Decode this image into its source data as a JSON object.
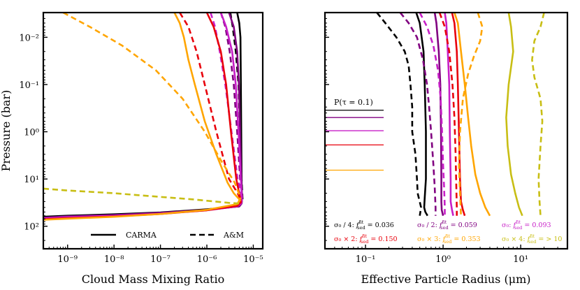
{
  "chart_data": [
    {
      "type": "line",
      "panel": "left",
      "xlabel": "Cloud Mass Mixing Ratio",
      "ylabel": "Pressure (bar)",
      "xscale": "log",
      "yscale": "log",
      "xlim": [
        3e-10,
        1.6e-05
      ],
      "ylim": [
        300,
        0.003
      ],
      "yinverted": true,
      "xticks": [
        {
          "v": 1e-09,
          "label": "10⁻⁹"
        },
        {
          "v": 1e-08,
          "label": "10⁻⁸"
        },
        {
          "v": 1e-07,
          "label": "10⁻⁷"
        },
        {
          "v": 1e-06,
          "label": "10⁻⁶"
        },
        {
          "v": 1e-05,
          "label": "10⁻⁵"
        }
      ],
      "yticks": [
        {
          "v": 0.01,
          "label": "10⁻²"
        },
        {
          "v": 0.1,
          "label": "10⁻¹"
        },
        {
          "v": 1,
          "label": "10⁰"
        },
        {
          "v": 10,
          "label": "10¹"
        },
        {
          "v": 100,
          "label": "10²"
        }
      ],
      "legend": {
        "placement": "lower-center",
        "items": [
          {
            "label": "CARMA",
            "style": "solid"
          },
          {
            "label": "A&M",
            "style": "dashed"
          }
        ]
      },
      "series": [
        {
          "name": "σ0 / 4 CARMA",
          "color": "#000000",
          "style": "solid",
          "x": [
            4.5e-06,
            5e-06,
            5.3e-06,
            5.4e-06,
            5.5e-06,
            5.6e-06,
            5.7e-06,
            5.6e-06,
            5e-06,
            1e-06,
            1e-07,
            1e-08,
            1e-09,
            3e-10
          ],
          "y": [
            0.003,
            0.005,
            0.01,
            0.1,
            1,
            10,
            28,
            33,
            38,
            44,
            51,
            56,
            60,
            63
          ]
        },
        {
          "name": "σ0 / 4 A&M",
          "color": "#000000",
          "style": "dashed",
          "x": [
            3.2e-06,
            3.6e-06,
            4.2e-06,
            4.8e-06,
            5.2e-06,
            5.6e-06,
            5.8e-06,
            5.9e-06,
            5e-06
          ],
          "y": [
            0.003,
            0.006,
            0.02,
            0.1,
            1,
            10,
            20,
            28,
            35
          ]
        },
        {
          "name": "σ0 / 2 CARMA",
          "color": "#800080",
          "style": "solid",
          "x": [
            3e-06,
            3.8e-06,
            4.5e-06,
            4.9e-06,
            5.2e-06,
            5.5e-06,
            5.7e-06,
            5.6e-06,
            5e-06,
            1e-06,
            1e-07,
            1e-08,
            1e-09,
            3e-10
          ],
          "y": [
            0.003,
            0.006,
            0.02,
            0.1,
            1,
            10,
            27,
            33,
            38,
            45,
            52,
            58,
            62,
            66
          ]
        },
        {
          "name": "σ0 / 2 A&M",
          "color": "#800080",
          "style": "dashed",
          "x": [
            2e-06,
            2.5e-06,
            3.1e-06,
            3.8e-06,
            4.5e-06,
            5.2e-06,
            5.7e-06,
            5.9e-06,
            5e-06
          ],
          "y": [
            0.003,
            0.006,
            0.02,
            0.1,
            1,
            10,
            20,
            28,
            35
          ]
        },
        {
          "name": "σ0 CARMA",
          "color": "#c71ec7",
          "style": "solid",
          "x": [
            2e-06,
            2.6e-06,
            3.5e-06,
            4.2e-06,
            4.8e-06,
            5.4e-06,
            5.7e-06,
            5.5e-06,
            4.5e-06,
            1e-06,
            1e-07,
            1e-08,
            1e-09,
            3e-10
          ],
          "y": [
            0.003,
            0.006,
            0.02,
            0.1,
            1,
            10,
            27,
            33,
            38,
            46,
            54,
            60,
            64,
            68
          ]
        },
        {
          "name": "σ0 A&M",
          "color": "#c71ec7",
          "style": "dashed",
          "x": [
            1.2e-06,
            1.5e-06,
            1.9e-06,
            2.5e-06,
            3.4e-06,
            4.6e-06,
            5.5e-06,
            5.8e-06,
            5e-06
          ],
          "y": [
            0.003,
            0.006,
            0.02,
            0.1,
            1,
            10,
            20,
            28,
            35
          ]
        },
        {
          "name": "σ0 × 2 CARMA",
          "color": "#e8000b",
          "style": "solid",
          "x": [
            1e-06,
            1.4e-06,
            2e-06,
            2.6e-06,
            3.3e-06,
            4.3e-06,
            5.2e-06,
            5.4e-06,
            4.5e-06,
            1e-06,
            1e-07,
            1e-08,
            1e-09,
            3e-10
          ],
          "y": [
            0.003,
            0.006,
            0.02,
            0.1,
            1,
            10,
            25,
            31,
            37,
            46,
            55,
            62,
            67,
            71
          ]
        },
        {
          "name": "σ0 × 2 A&M",
          "color": "#e8000b",
          "style": "dashed",
          "x": [
            2.6e-07,
            4e-07,
            6e-07,
            9e-07,
            1.6e-06,
            3e-06,
            4.6e-06,
            5.4e-06,
            4.8e-06
          ],
          "y": [
            0.003,
            0.006,
            0.02,
            0.1,
            1,
            10,
            20,
            28,
            35
          ]
        },
        {
          "name": "σ0 × 3 CARMA",
          "color": "#ffa500",
          "style": "solid",
          "x": [
            2e-07,
            2.6e-07,
            3.2e-07,
            4e-07,
            5.5e-07,
            9e-07,
            1.6e-06,
            2.8e-06,
            3.8e-06,
            5.2e-06,
            4.5e-06,
            1e-06,
            1e-07,
            1e-08,
            1e-09,
            3e-10
          ],
          "y": [
            0.003,
            0.005,
            0.01,
            0.03,
            0.1,
            0.6,
            3,
            12,
            20,
            28,
            34,
            45,
            55,
            63,
            69,
            73
          ]
        },
        {
          "name": "σ0 × 3 A&M",
          "color": "#ffa500",
          "style": "dashed",
          "x": [
            8e-10,
            3e-09,
            1.5e-08,
            8e-08,
            3e-07,
            9e-07,
            2e-06,
            4e-06,
            5.3e-06,
            4.5e-06
          ],
          "y": [
            0.003,
            0.006,
            0.015,
            0.05,
            0.2,
            1,
            4,
            12,
            25,
            35
          ]
        },
        {
          "name": "σ0 × 4 A&M",
          "color": "#c8be14",
          "style": "dashed",
          "x": [
            3e-10,
            1e-09,
            1e-08,
            1e-07,
            5e-07,
            1.5e-06,
            3e-06,
            5e-06,
            4.5e-06
          ],
          "y": [
            16,
            17.5,
            20,
            24,
            27,
            30,
            32,
            33,
            36
          ]
        }
      ]
    },
    {
      "type": "line",
      "panel": "right",
      "xlabel": "Effective Particle Radius (μm)",
      "xscale": "log",
      "yscale": "log",
      "xlim": [
        0.03,
        40
      ],
      "ylim": [
        300,
        0.003
      ],
      "yinverted": true,
      "xticks": [
        {
          "v": 0.1,
          "label": "10⁻¹"
        },
        {
          "v": 1,
          "label": "10⁰"
        },
        {
          "v": 10,
          "label": "10¹"
        }
      ],
      "annotation": {
        "label": "P(τ = 0.1)",
        "markers": [
          {
            "p": 0.35,
            "color": "#000000"
          },
          {
            "p": 0.5,
            "color": "#800080"
          },
          {
            "p": 0.95,
            "color": "#c71ec7"
          },
          {
            "p": 1.9,
            "color": "#e8000b"
          },
          {
            "p": 6.5,
            "color": "#ffa500"
          }
        ]
      },
      "legend": {
        "placement": "bottom",
        "items": [
          {
            "prefix": "σ₀ / 4:",
            "value": "0.036",
            "color": "#000000"
          },
          {
            "prefix": "σ₀ / 2:",
            "value": "0.059",
            "color": "#800080"
          },
          {
            "prefix": "σ₀:",
            "value": "0.093",
            "color": "#c71ec7"
          },
          {
            "prefix": "σ₀ × 2:",
            "value": "0.150",
            "color": "#e8000b"
          },
          {
            "prefix": "σ₀ × 3:",
            "value": "0.353",
            "color": "#ffa500"
          },
          {
            "prefix": "σ₀ × 4:",
            "value": "> 10",
            "color": "#c8be14"
          }
        ],
        "f_symbol": "f",
        "f_sup": "fit",
        "f_sub": "sed",
        "eq": "="
      },
      "series": [
        {
          "name": "σ0 / 4 CARMA",
          "color": "#000000",
          "style": "solid",
          "x": [
            0.45,
            0.5,
            0.56,
            0.58,
            0.6,
            0.6,
            0.58,
            0.57,
            0.59,
            0.63
          ],
          "y": [
            0.003,
            0.005,
            0.02,
            0.1,
            1,
            10,
            25,
            40,
            50,
            60
          ]
        },
        {
          "name": "σ0 / 4 A&M",
          "color": "#000000",
          "style": "dashed",
          "x": [
            0.14,
            0.18,
            0.25,
            0.32,
            0.36,
            0.38,
            0.4,
            0.4,
            0.44,
            0.46,
            0.47,
            0.52,
            0.5
          ],
          "y": [
            0.003,
            0.005,
            0.01,
            0.02,
            0.04,
            0.1,
            0.3,
            1,
            3,
            10,
            20,
            40,
            60
          ]
        },
        {
          "name": "σ0 / 2 CARMA",
          "color": "#800080",
          "style": "solid",
          "x": [
            0.78,
            0.82,
            0.88,
            0.92,
            0.94,
            0.95,
            0.95,
            0.96,
            1.0
          ],
          "y": [
            0.003,
            0.005,
            0.02,
            0.1,
            1,
            10,
            30,
            45,
            60
          ]
        },
        {
          "name": "σ0 / 2 A&M",
          "color": "#800080",
          "style": "dashed",
          "x": [
            0.28,
            0.36,
            0.46,
            0.55,
            0.62,
            0.66,
            0.7,
            0.75,
            0.78,
            0.8,
            0.8
          ],
          "y": [
            0.003,
            0.005,
            0.01,
            0.03,
            0.1,
            0.3,
            1,
            5,
            15,
            40,
            60
          ]
        },
        {
          "name": "σ0 CARMA",
          "color": "#c71ec7",
          "style": "solid",
          "x": [
            1.05,
            1.1,
            1.15,
            1.2,
            1.22,
            1.25,
            1.25,
            1.3,
            1.35
          ],
          "y": [
            0.003,
            0.005,
            0.02,
            0.1,
            1,
            10,
            30,
            45,
            60
          ]
        },
        {
          "name": "σ0 A&M",
          "color": "#c71ec7",
          "style": "dashed",
          "x": [
            0.5,
            0.62,
            0.75,
            0.86,
            0.93,
            0.97,
            1.0,
            1.03,
            1.05,
            1.05
          ],
          "y": [
            0.003,
            0.006,
            0.015,
            0.05,
            0.2,
            1,
            5,
            15,
            40,
            60
          ]
        },
        {
          "name": "σ0 × 2 CARMA",
          "color": "#e8000b",
          "style": "solid",
          "x": [
            1.3,
            1.4,
            1.5,
            1.55,
            1.6,
            1.65,
            1.7,
            1.8,
            1.9
          ],
          "y": [
            0.003,
            0.005,
            0.02,
            0.1,
            1,
            10,
            30,
            45,
            60
          ]
        },
        {
          "name": "σ0 × 2 A&M",
          "color": "#e8000b",
          "style": "dashed",
          "x": [
            0.9,
            1.05,
            1.2,
            1.32,
            1.4,
            1.45,
            1.48,
            1.5,
            1.5
          ],
          "y": [
            0.003,
            0.006,
            0.02,
            0.1,
            0.5,
            3,
            15,
            40,
            60
          ]
        },
        {
          "name": "σ0 × 3 CARMA",
          "color": "#ffa500",
          "style": "solid",
          "x": [
            1.4,
            1.55,
            1.7,
            1.9,
            2.1,
            2.3,
            2.6,
            3.0,
            3.5,
            4.0
          ],
          "y": [
            0.003,
            0.005,
            0.02,
            0.1,
            0.5,
            2,
            8,
            20,
            40,
            60
          ]
        },
        {
          "name": "σ0 × 3 A&M",
          "color": "#ffa500",
          "style": "dashed",
          "x": [
            2.8,
            3.2,
            3.0,
            2.5,
            2.1,
            1.8,
            1.65,
            1.6,
            1.65,
            1.7
          ],
          "y": [
            0.003,
            0.006,
            0.012,
            0.025,
            0.06,
            0.2,
            1,
            5,
            20,
            60
          ]
        },
        {
          "name": "σ0 × 4 CARMA",
          "color": "#c8be14",
          "style": "solid",
          "x": [
            7.0,
            7.5,
            8.0,
            7.0,
            6.5,
            6.8,
            7.5,
            8.5,
            9.5,
            10.5
          ],
          "y": [
            0.003,
            0.006,
            0.02,
            0.1,
            0.5,
            2,
            8,
            20,
            40,
            60
          ]
        },
        {
          "name": "σ0 × 4 A&M",
          "color": "#c8be14",
          "style": "dashed",
          "x": [
            20,
            18,
            15,
            14,
            15,
            18,
            19,
            18,
            17,
            17.5,
            18
          ],
          "y": [
            0.003,
            0.006,
            0.012,
            0.03,
            0.07,
            0.2,
            0.6,
            2,
            10,
            30,
            60
          ]
        }
      ]
    }
  ]
}
